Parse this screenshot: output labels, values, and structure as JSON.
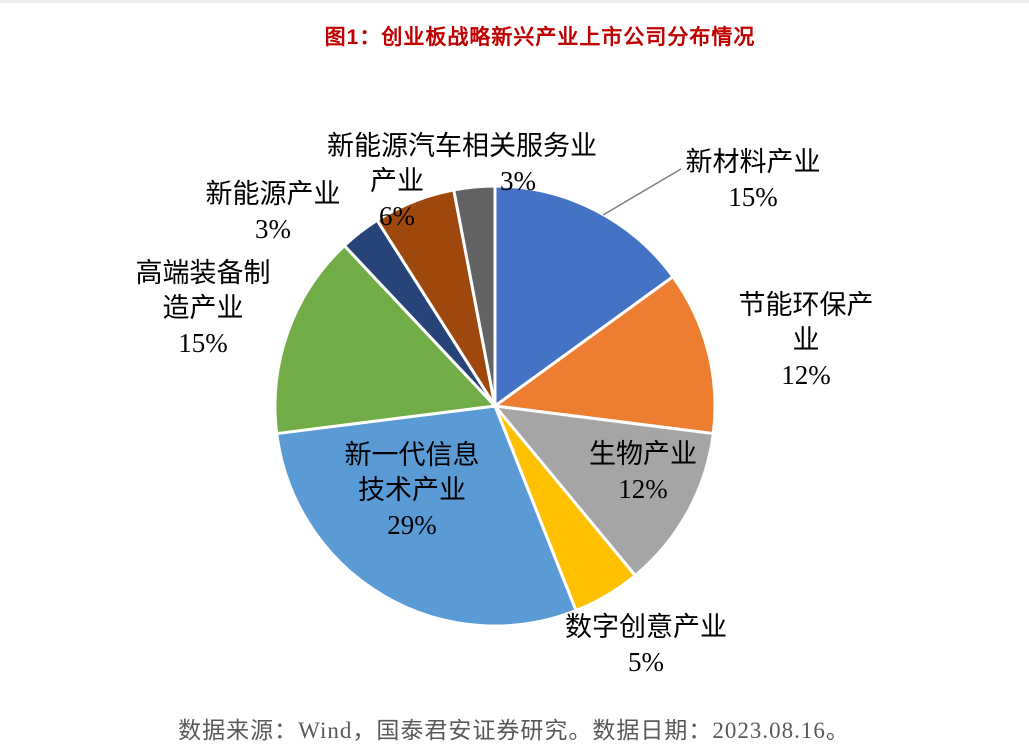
{
  "page": {
    "title": "图1：创业板战略新兴产业上市公司分布情况",
    "footer": "数据来源：Wind，国泰君安证券研究。数据日期：2023.08.16。"
  },
  "colors": {
    "title": "#C00000",
    "footer": "#595959",
    "label": "#000000",
    "leader_line": "#7F7F7F",
    "slice_border": "#FFFFFF"
  },
  "chart_data": {
    "type": "pie",
    "title": "图1：创业板战略新兴产业上市公司分布情况",
    "source_note": "数据来源：Wind，国泰君安证券研究。数据日期：2023.08.16。",
    "start_angle_deg": -90,
    "direction": "clockwise",
    "unit": "%",
    "series": [
      {
        "id": "new-materials",
        "name": "新材料产业",
        "value": 15,
        "color": "#4472C4"
      },
      {
        "id": "energy-saving",
        "name": "节能环保产业",
        "value": 12,
        "color": "#ED7D31"
      },
      {
        "id": "bio",
        "name": "生物产业",
        "value": 12,
        "color": "#A5A5A5"
      },
      {
        "id": "digital-creative",
        "name": "数字创意产业",
        "value": 5,
        "color": "#FFC000"
      },
      {
        "id": "next-gen-it",
        "name": "新一代信息技术产业",
        "value": 29,
        "color": "#5B9BD5"
      },
      {
        "id": "high-end-equipment",
        "name": "高端装备制造产业",
        "value": 15,
        "color": "#70AD47"
      },
      {
        "id": "new-energy",
        "name": "新能源产业",
        "value": 3,
        "color": "#264478"
      },
      {
        "id": "new-energy-vehicle",
        "name": "新能源汽车产业",
        "value": 6,
        "color": "#9E480E"
      },
      {
        "id": "related-services",
        "name": "相关服务业",
        "value": 3,
        "color": "#636363"
      }
    ]
  },
  "callouts": {
    "nev_service_top": "新能源汽车相关服务业",
    "nev_industry": "产业\n6%",
    "service_pct": "3%",
    "new_energy": "新能源产业\n3%",
    "high_end": "高端装备制\n造产业\n15%",
    "new_materials": "新材料产业\n15%",
    "energy_saving": "节能环保产\n业\n12%",
    "bio": "生物产业\n12%",
    "digital": "数字创意产业\n5%",
    "it": "新一代信息\n技术产业\n29%"
  }
}
